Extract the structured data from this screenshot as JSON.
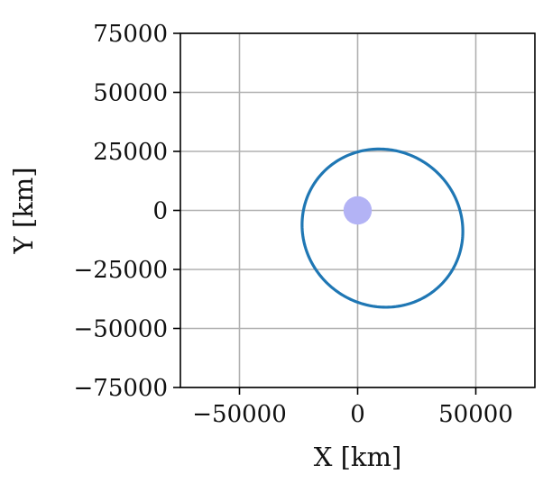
{
  "chart_data": {
    "type": "line",
    "title": "",
    "xlabel": "X [km]",
    "ylabel": "Y [km]",
    "xlim": [
      -75000,
      75000
    ],
    "ylim": [
      -75000,
      75000
    ],
    "xticks": [
      -50000,
      0,
      50000
    ],
    "xtick_labels": [
      "−50000",
      "0",
      "50000"
    ],
    "yticks": [
      -75000,
      -50000,
      -25000,
      0,
      25000,
      50000,
      75000
    ],
    "ytick_labels": [
      "−75000",
      "−50000",
      "−25000",
      "0",
      "25000",
      "50000",
      "75000"
    ],
    "grid": true,
    "series": [
      {
        "kind": "orbit-ellipse",
        "color": "#1f77b4",
        "center": [
          10500,
          -7500
        ],
        "semi_axes": [
          34500,
          33000
        ],
        "rotation_deg": -35
      }
    ],
    "central_body": {
      "center": [
        0,
        0
      ],
      "radius": 6000,
      "color": "#b3b3f5"
    }
  }
}
